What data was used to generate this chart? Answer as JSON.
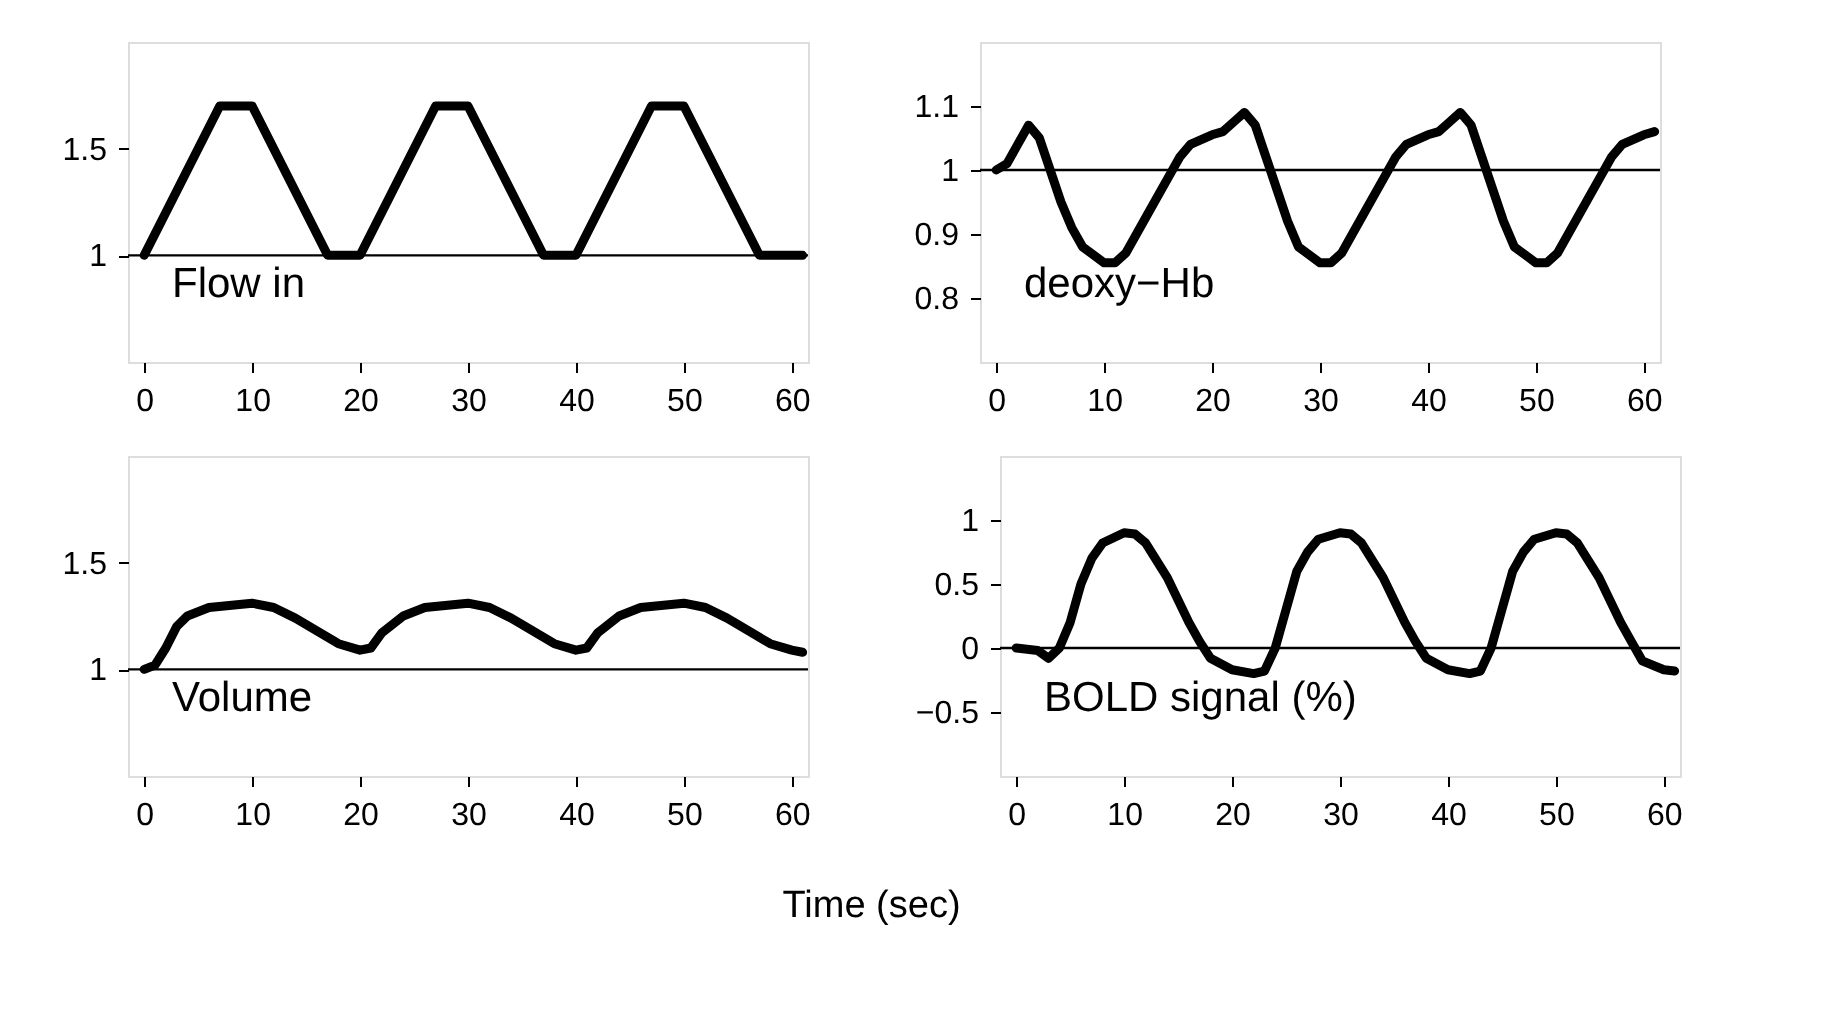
{
  "chart_data": [
    {
      "type": "line",
      "annotations": [
        "Flow in"
      ],
      "xlim": [
        -1.5,
        61.5
      ],
      "xticks": [
        0,
        10,
        20,
        30,
        40,
        50,
        60
      ],
      "ylim": [
        0.5,
        2
      ],
      "yticks": [
        1,
        1.5
      ],
      "grid": false,
      "marker": "none",
      "line_style": "solid",
      "ref_lines": [
        {
          "axis": "y",
          "value": 1,
          "color": "#000000"
        }
      ],
      "series": [
        {
          "color": "#000000",
          "x": [
            0,
            7,
            10,
            17,
            20,
            27,
            30,
            37,
            40,
            47,
            50,
            57,
            61
          ],
          "values": [
            1,
            1.7,
            1.7,
            1,
            1,
            1.7,
            1.7,
            1,
            1,
            1.7,
            1.7,
            1,
            1
          ]
        }
      ]
    },
    {
      "type": "line",
      "annotations": [
        "deoxy−Hb"
      ],
      "xlim": [
        -1.5,
        61.5
      ],
      "xticks": [
        0,
        10,
        20,
        30,
        40,
        50,
        60
      ],
      "ylim": [
        0.7,
        1.2
      ],
      "yticks": [
        0.8,
        0.9,
        1,
        1.1
      ],
      "grid": false,
      "marker": "none",
      "line_style": "solid",
      "ref_lines": [
        {
          "axis": "y",
          "value": 1,
          "color": "#000000"
        }
      ],
      "series": [
        {
          "color": "#000000",
          "x": [
            0,
            1,
            2,
            3,
            4,
            5,
            6,
            7,
            8,
            10,
            11,
            12,
            14,
            16,
            17,
            18,
            20,
            21,
            22,
            23,
            24,
            25,
            26,
            27,
            28,
            30,
            31,
            32,
            34,
            36,
            37,
            38,
            40,
            41,
            42,
            43,
            44,
            45,
            46,
            47,
            48,
            50,
            51,
            52,
            54,
            56,
            57,
            58,
            60,
            61
          ],
          "values": [
            1.0,
            1.01,
            1.04,
            1.07,
            1.05,
            1.0,
            0.95,
            0.91,
            0.88,
            0.855,
            0.855,
            0.87,
            0.93,
            0.99,
            1.02,
            1.04,
            1.055,
            1.06,
            1.075,
            1.09,
            1.07,
            1.02,
            0.97,
            0.92,
            0.88,
            0.855,
            0.855,
            0.87,
            0.93,
            0.99,
            1.02,
            1.04,
            1.055,
            1.06,
            1.075,
            1.09,
            1.07,
            1.02,
            0.97,
            0.92,
            0.88,
            0.855,
            0.855,
            0.87,
            0.93,
            0.99,
            1.02,
            1.04,
            1.055,
            1.06
          ]
        }
      ]
    },
    {
      "type": "line",
      "annotations": [
        "Volume"
      ],
      "xlabel": "Time (sec)",
      "xlim": [
        -1.5,
        61.5
      ],
      "xticks": [
        0,
        10,
        20,
        30,
        40,
        50,
        60
      ],
      "ylim": [
        0.5,
        2
      ],
      "yticks": [
        1,
        1.5
      ],
      "grid": false,
      "marker": "none",
      "line_style": "solid",
      "ref_lines": [
        {
          "axis": "y",
          "value": 1,
          "color": "#000000"
        }
      ],
      "series": [
        {
          "color": "#000000",
          "x": [
            0,
            1,
            2,
            3,
            4,
            6,
            10,
            12,
            14,
            16,
            18,
            20,
            21,
            22,
            24,
            26,
            30,
            32,
            34,
            36,
            38,
            40,
            41,
            42,
            44,
            46,
            50,
            52,
            54,
            56,
            58,
            60,
            61
          ],
          "values": [
            1,
            1.02,
            1.1,
            1.2,
            1.25,
            1.29,
            1.31,
            1.29,
            1.24,
            1.18,
            1.12,
            1.09,
            1.1,
            1.17,
            1.25,
            1.29,
            1.31,
            1.29,
            1.24,
            1.18,
            1.12,
            1.09,
            1.1,
            1.17,
            1.25,
            1.29,
            1.31,
            1.29,
            1.24,
            1.18,
            1.12,
            1.09,
            1.08
          ]
        }
      ]
    },
    {
      "type": "line",
      "annotations": [
        "BOLD signal  (%)"
      ],
      "xlim": [
        -1.5,
        61.5
      ],
      "xticks": [
        0,
        10,
        20,
        30,
        40,
        50,
        60
      ],
      "ylim": [
        -1,
        1.5
      ],
      "yticks": [
        -0.5,
        0,
        0.5,
        1
      ],
      "grid": false,
      "marker": "none",
      "line_style": "solid",
      "ref_lines": [
        {
          "axis": "y",
          "value": 0,
          "color": "#000000"
        }
      ],
      "series": [
        {
          "color": "#000000",
          "x": [
            0,
            2,
            3,
            4,
            5,
            6,
            7,
            8,
            10,
            11,
            12,
            14,
            16,
            17,
            18,
            20,
            22,
            23,
            24,
            25,
            26,
            27,
            28,
            30,
            31,
            32,
            34,
            36,
            37,
            38,
            40,
            42,
            43,
            44,
            45,
            46,
            47,
            48,
            50,
            51,
            52,
            54,
            56,
            57,
            58,
            60,
            61
          ],
          "values": [
            0,
            -0.02,
            -0.08,
            0,
            0.2,
            0.5,
            0.7,
            0.82,
            0.9,
            0.89,
            0.82,
            0.55,
            0.2,
            0.05,
            -0.08,
            -0.17,
            -0.2,
            -0.18,
            0,
            0.3,
            0.6,
            0.75,
            0.85,
            0.9,
            0.89,
            0.82,
            0.55,
            0.2,
            0.05,
            -0.08,
            -0.17,
            -0.2,
            -0.18,
            0,
            0.3,
            0.6,
            0.75,
            0.85,
            0.9,
            0.89,
            0.82,
            0.55,
            0.2,
            0.05,
            -0.1,
            -0.17,
            -0.18
          ]
        }
      ]
    }
  ]
}
